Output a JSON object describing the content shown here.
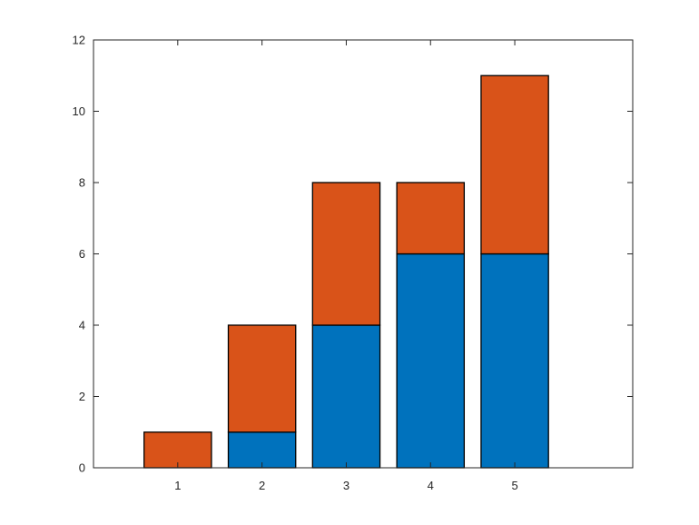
{
  "chart_data": {
    "type": "bar",
    "stacked": true,
    "categories": [
      "1",
      "2",
      "3",
      "4",
      "5"
    ],
    "series": [
      {
        "values": [
          0,
          1,
          4,
          6,
          6
        ],
        "color": "#0072BD"
      },
      {
        "values": [
          1,
          3,
          4,
          2,
          5
        ],
        "color": "#D95319"
      }
    ],
    "xlim": [
      0,
      6.4
    ],
    "ylim": [
      0,
      12
    ],
    "yticks": [
      0,
      2,
      4,
      6,
      8,
      10,
      12
    ],
    "ytick_labels": [
      "0",
      "2",
      "4",
      "6",
      "8",
      "10",
      "12"
    ],
    "xticks": [
      1,
      2,
      3,
      4,
      5
    ],
    "xtick_labels": [
      "1",
      "2",
      "3",
      "4",
      "5"
    ],
    "bar_width": 0.8,
    "grid": false,
    "box": true
  }
}
